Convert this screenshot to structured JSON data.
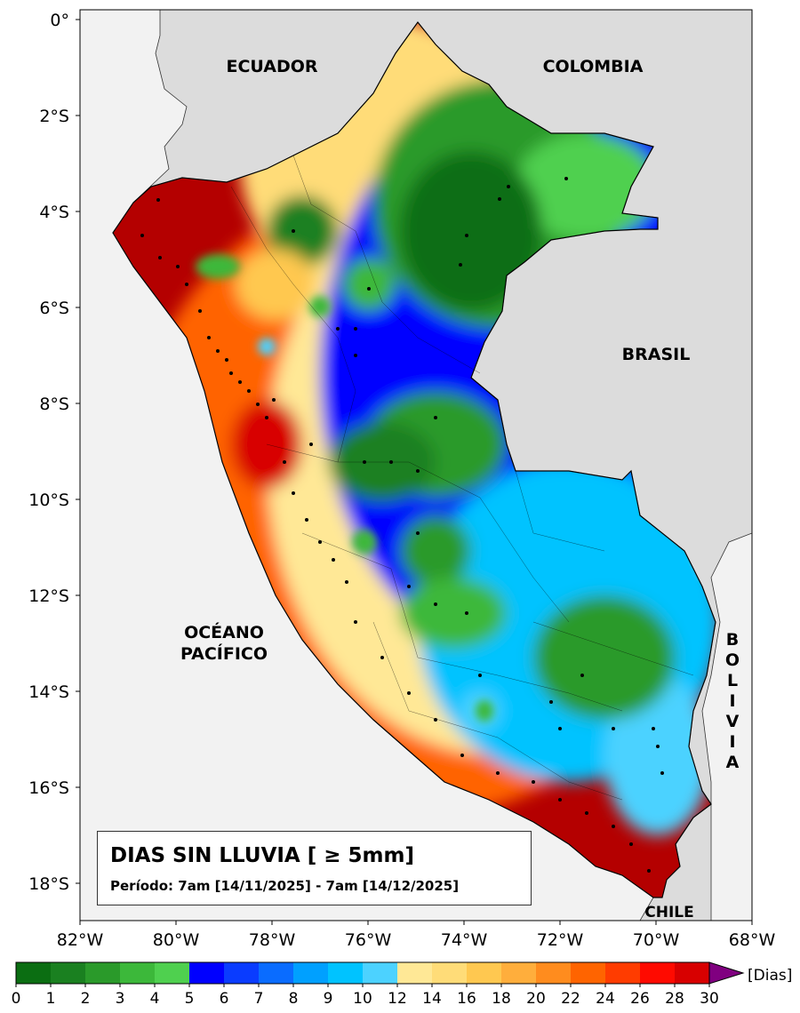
{
  "axes": {
    "y_ticks": [
      "0°",
      "2°S",
      "4°S",
      "6°S",
      "8°S",
      "10°S",
      "12°S",
      "14°S",
      "16°S",
      "18°S"
    ],
    "x_ticks": [
      "82°W",
      "80°W",
      "78°W",
      "76°W",
      "74°W",
      "72°W",
      "70°W",
      "68°W"
    ]
  },
  "labels": {
    "ecuador": "ECUADOR",
    "colombia": "COLOMBIA",
    "brasil": "BRASIL",
    "oceano_1": "OCÉANO",
    "oceano_2": "PACÍFICO",
    "bolivia": [
      "B",
      "O",
      "L",
      "I",
      "V",
      "I",
      "A"
    ],
    "chile": "CHILE"
  },
  "title": {
    "main": "DIAS SIN LLUVIA [ ≥ 5mm]",
    "period": "Período: 7am [14/11/2025] - 7am [14/12/2025]"
  },
  "colorbar": {
    "unit": "[Dias]",
    "tick_labels": [
      "0",
      "1",
      "2",
      "3",
      "4",
      "5",
      "6",
      "7",
      "8",
      "9",
      "10",
      "12",
      "14",
      "16",
      "18",
      "20",
      "22",
      "24",
      "26",
      "28",
      "30"
    ],
    "colors": [
      "#0b6e12",
      "#1a8020",
      "#2a9a2a",
      "#3cb83a",
      "#4fd04f",
      "#0000ff",
      "#0a3cff",
      "#0a6cff",
      "#00a0ff",
      "#00c3ff",
      "#4cd2ff",
      "#ffe896",
      "#ffdc78",
      "#ffc850",
      "#ffae3c",
      "#ff8c1e",
      "#ff6400",
      "#ff3c00",
      "#ff0a00",
      "#d80000",
      "#b40000"
    ],
    "extend_color": "#800080"
  },
  "colors": {
    "ocean": "#f2f2f2",
    "land": "#dcdcdc"
  }
}
